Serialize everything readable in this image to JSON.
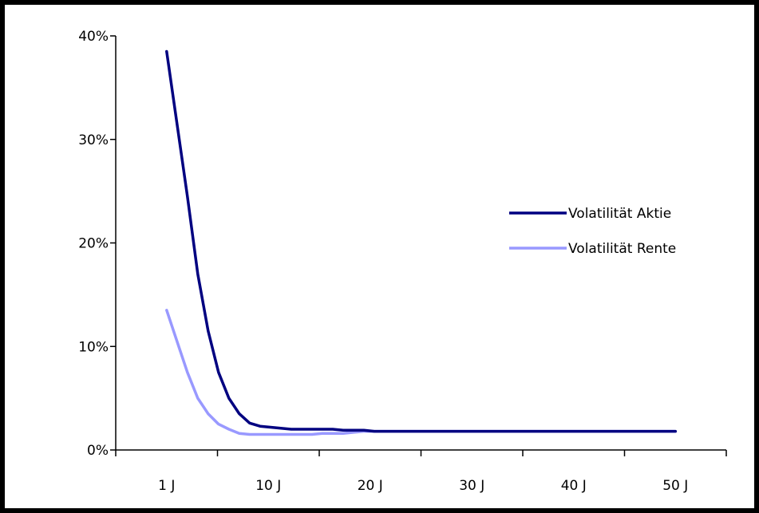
{
  "chart_data": {
    "type": "line",
    "title": "",
    "xlabel": "",
    "ylabel": "",
    "x_tick_labels": [
      "1 J",
      "10 J",
      "20 J",
      "30 J",
      "40 J",
      "50 J"
    ],
    "y_tick_labels": [
      "0%",
      "10%",
      "20%",
      "30%",
      "40%"
    ],
    "ylim": [
      0,
      40
    ],
    "y_unit": "%",
    "legend_position": "right",
    "grid": false,
    "x": [
      1,
      2,
      3,
      4,
      5,
      6,
      7,
      8,
      9,
      10,
      11,
      12,
      13,
      14,
      15,
      16,
      17,
      18,
      19,
      20,
      21,
      22,
      23,
      24,
      25,
      26,
      27,
      28,
      29,
      30,
      31,
      32,
      33,
      34,
      35,
      36,
      37,
      38,
      39,
      40,
      41,
      42,
      43,
      44,
      45,
      46,
      47,
      48,
      49,
      50
    ],
    "series": [
      {
        "name": "Volatilität Aktie",
        "color": "#000080",
        "values": [
          38.5,
          31.5,
          24.5,
          17.0,
          11.5,
          7.5,
          5.0,
          3.5,
          2.6,
          2.3,
          2.2,
          2.1,
          2.0,
          2.0,
          2.0,
          2.0,
          2.0,
          1.9,
          1.9,
          1.9,
          1.8,
          1.8,
          1.8,
          1.8,
          1.8,
          1.8,
          1.8,
          1.8,
          1.8,
          1.8,
          1.8,
          1.8,
          1.8,
          1.8,
          1.8,
          1.8,
          1.8,
          1.8,
          1.8,
          1.8,
          1.8,
          1.8,
          1.8,
          1.8,
          1.8,
          1.8,
          1.8,
          1.8,
          1.8,
          1.8
        ]
      },
      {
        "name": "Volatilität Rente",
        "color": "#9999ff",
        "values": [
          13.5,
          10.5,
          7.5,
          5.0,
          3.5,
          2.5,
          2.0,
          1.6,
          1.5,
          1.5,
          1.5,
          1.5,
          1.5,
          1.5,
          1.5,
          1.6,
          1.6,
          1.6,
          1.7,
          1.8,
          1.8,
          1.8,
          1.8,
          1.8,
          1.8,
          1.8,
          1.8,
          1.8,
          1.8,
          1.8,
          1.8,
          1.8,
          1.8,
          1.8,
          1.8,
          1.8,
          1.8,
          1.8,
          1.8,
          1.8,
          1.8,
          1.8,
          1.8,
          1.8,
          1.8,
          1.8,
          1.8,
          1.8,
          1.8,
          1.8
        ]
      }
    ]
  }
}
